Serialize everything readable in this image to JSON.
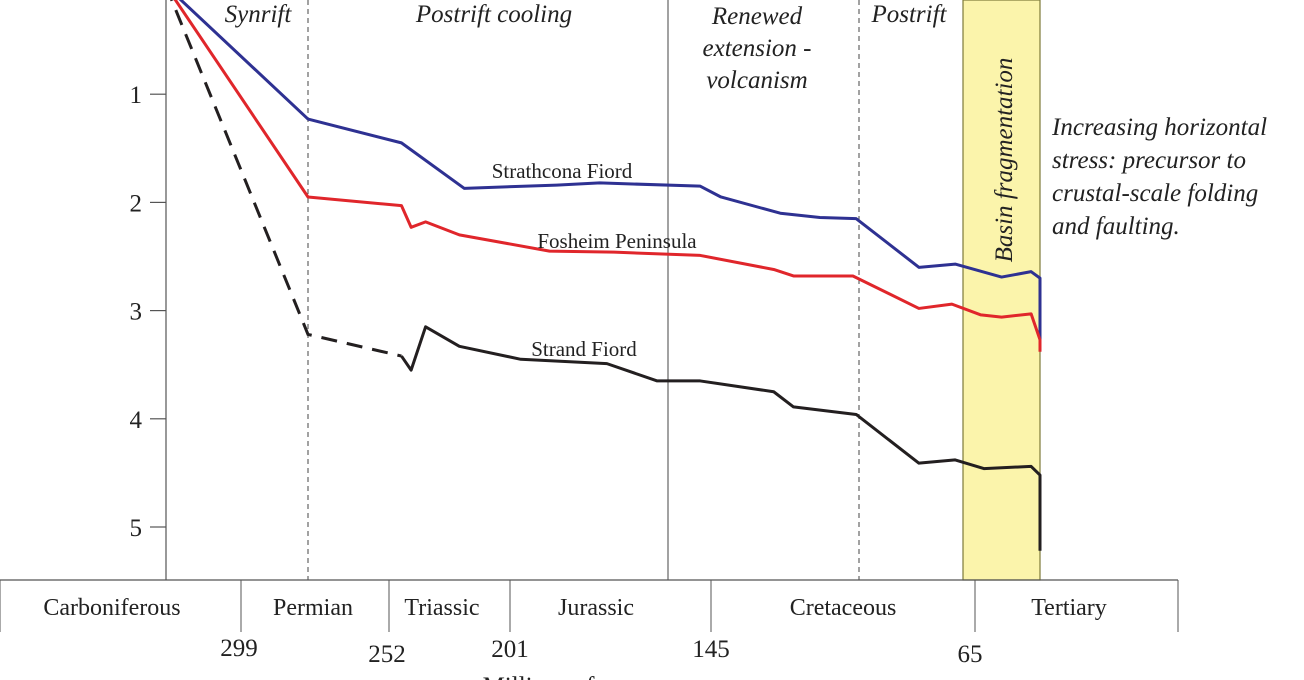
{
  "chart_data": {
    "type": "line",
    "title": "",
    "xlabel": "Millions of years",
    "ylabel": "",
    "y_ticks": [
      "1",
      "2",
      "3",
      "4",
      "5"
    ],
    "ylim": [
      0,
      5.5
    ],
    "x_ticks": [
      "299",
      "252",
      "201",
      "145",
      "65"
    ],
    "phases": [
      "Synrift",
      "Postrift cooling",
      "Renewed\nextension -\nvolcanism",
      "Postrift"
    ],
    "periods": [
      "Carboniferous",
      "Permian",
      "Triassic",
      "Jurassic",
      "Cretaceous",
      "Tertiary"
    ],
    "highlight": {
      "label": "Basin fragmentation",
      "color": "#fbf4ab",
      "x_range": [
        65,
        43
      ]
    },
    "annotation": "Increasing horizontal\nstress: precursor to\ncrustal-scale folding\nand faulting.",
    "series": [
      {
        "name": "Strathcona Fiord",
        "color": "#2e3192",
        "points": [
          [
            320,
            0
          ],
          [
            275,
            1.23
          ],
          [
            246,
            1.45
          ],
          [
            220,
            1.87
          ],
          [
            188,
            1.84
          ],
          [
            176,
            1.82
          ],
          [
            148,
            1.85
          ],
          [
            142,
            1.95
          ],
          [
            124,
            2.1
          ],
          [
            112,
            2.14
          ],
          [
            101,
            2.15
          ],
          [
            82,
            2.6
          ],
          [
            71,
            2.57
          ],
          [
            56,
            2.69
          ],
          [
            46,
            2.64
          ],
          [
            42,
            2.7
          ],
          [
            35,
            2.88
          ],
          [
            29,
            3.08
          ],
          [
            20,
            3.27
          ]
        ]
      },
      {
        "name": "Fosheim Peninsula",
        "color": "#e0262b",
        "points": [
          [
            320,
            0
          ],
          [
            275,
            1.95
          ],
          [
            246,
            2.03
          ],
          [
            242,
            2.23
          ],
          [
            236,
            2.18
          ],
          [
            222,
            2.3
          ],
          [
            190,
            2.45
          ],
          [
            172,
            2.46
          ],
          [
            148,
            2.49
          ],
          [
            126,
            2.62
          ],
          [
            120,
            2.68
          ],
          [
            102,
            2.68
          ],
          [
            82,
            2.98
          ],
          [
            72,
            2.94
          ],
          [
            63,
            3.04
          ],
          [
            56,
            3.06
          ],
          [
            46,
            3.03
          ],
          [
            35,
            3.27
          ],
          [
            20,
            3.38
          ]
        ]
      },
      {
        "name": "Strand Fiord",
        "color": "#231f20",
        "dashed_until": 246,
        "points": [
          [
            320,
            0
          ],
          [
            275,
            3.22
          ],
          [
            246,
            3.42
          ],
          [
            242,
            3.55
          ],
          [
            236,
            3.15
          ],
          [
            222,
            3.33
          ],
          [
            198,
            3.45
          ],
          [
            174,
            3.49
          ],
          [
            160,
            3.65
          ],
          [
            148,
            3.65
          ],
          [
            126,
            3.75
          ],
          [
            120,
            3.89
          ],
          [
            101,
            3.96
          ],
          [
            82,
            4.41
          ],
          [
            71,
            4.38
          ],
          [
            62,
            4.46
          ],
          [
            46,
            4.44
          ],
          [
            41,
            4.52
          ],
          [
            32,
            5.08
          ],
          [
            20,
            5.22
          ]
        ]
      }
    ]
  }
}
